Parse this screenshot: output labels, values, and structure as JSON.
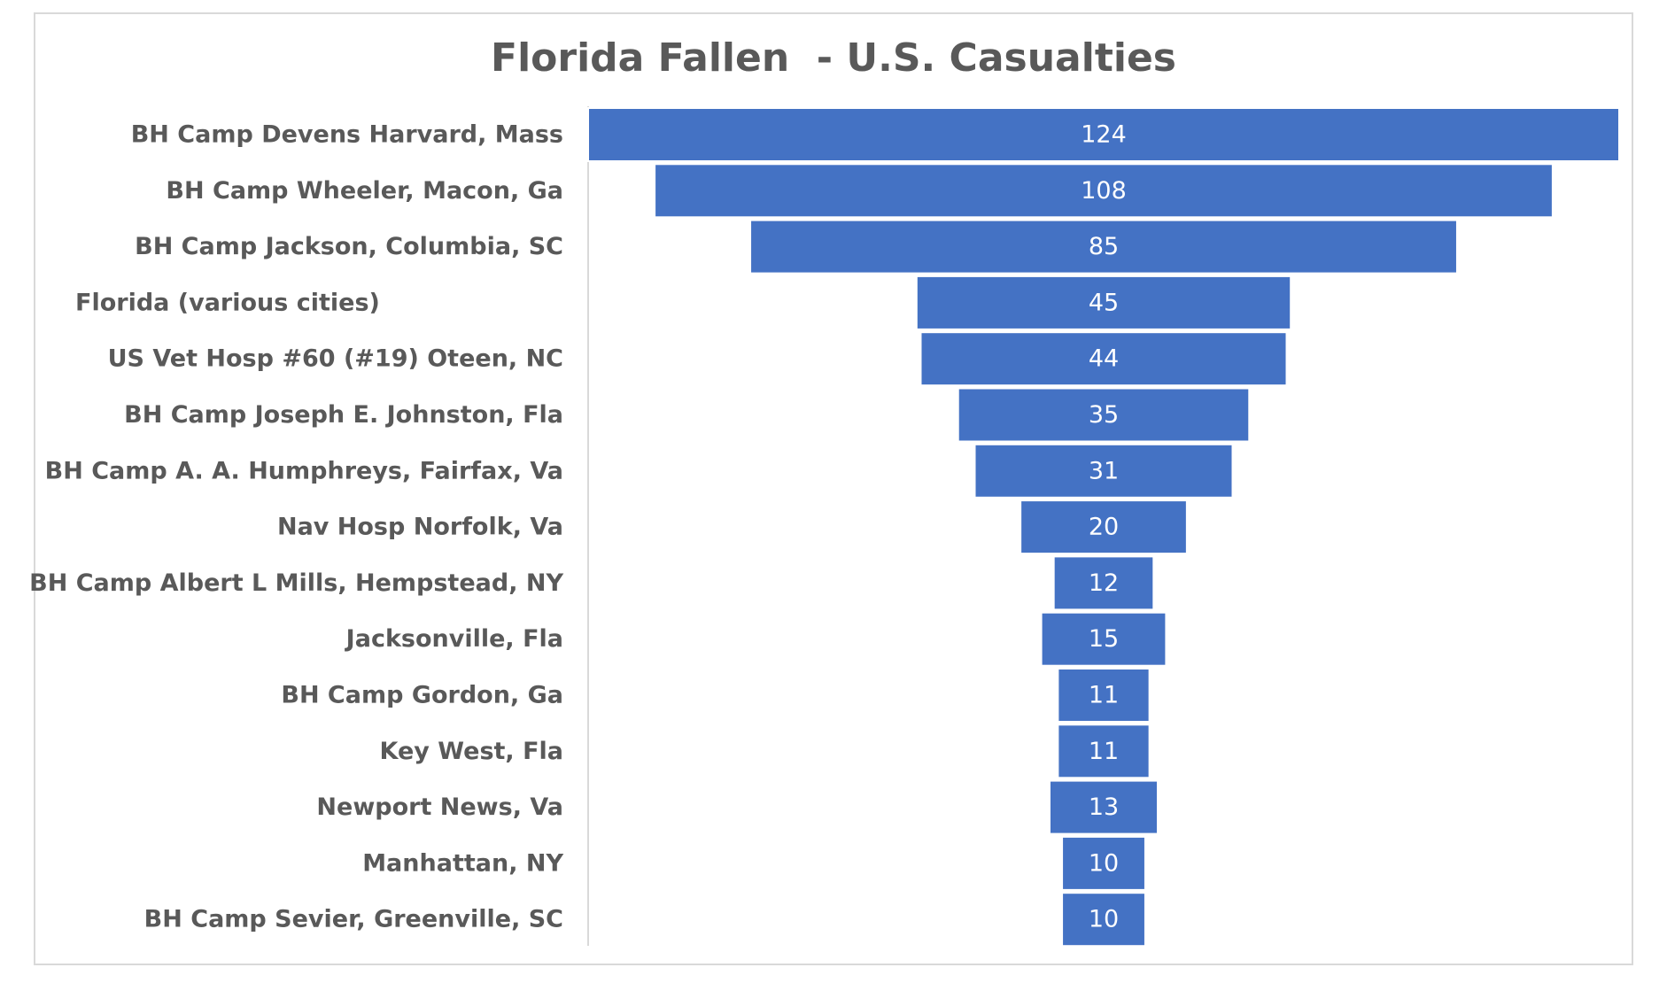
{
  "chart_data": {
    "type": "bar",
    "subtype": "funnel",
    "title": "Florida Fallen  - U.S. Casualties",
    "categories": [
      "BH Camp Devens Harvard, Mass",
      "BH Camp Wheeler, Macon, Ga",
      "BH Camp Jackson, Columbia, SC",
      "Florida (various cities)",
      "US Vet Hosp #60 (#19) Oteen, NC",
      "BH Camp Joseph E. Johnston, Fla",
      "BH Camp A. A. Humphreys, Fairfax, Va",
      "Nav Hosp Norfolk, Va",
      "BH Camp Albert L Mills, Hempstead, NY",
      "Jacksonville, Fla",
      "BH Camp Gordon, Ga",
      "Key West, Fla",
      "Newport News, Va",
      "Manhattan, NY",
      "BH Camp Sevier, Greenville, SC"
    ],
    "values": [
      124,
      108,
      85,
      45,
      44,
      35,
      31,
      20,
      12,
      15,
      11,
      11,
      13,
      10,
      10
    ],
    "data_labels": [
      "124",
      "108",
      "85",
      "45",
      "44",
      "35",
      "31",
      "20",
      "12",
      "15",
      "11",
      "11",
      "13",
      "10",
      "10"
    ],
    "orientation": "horizontal",
    "bar_alignment": "centered",
    "grid": false,
    "legend": "none",
    "colors": {
      "bar": "#4472c4",
      "bar_label": "#ffffff",
      "category_label": "#595959",
      "title": "#595959",
      "axis": "#d9d9d9",
      "frame": "#d9d9d9"
    }
  }
}
